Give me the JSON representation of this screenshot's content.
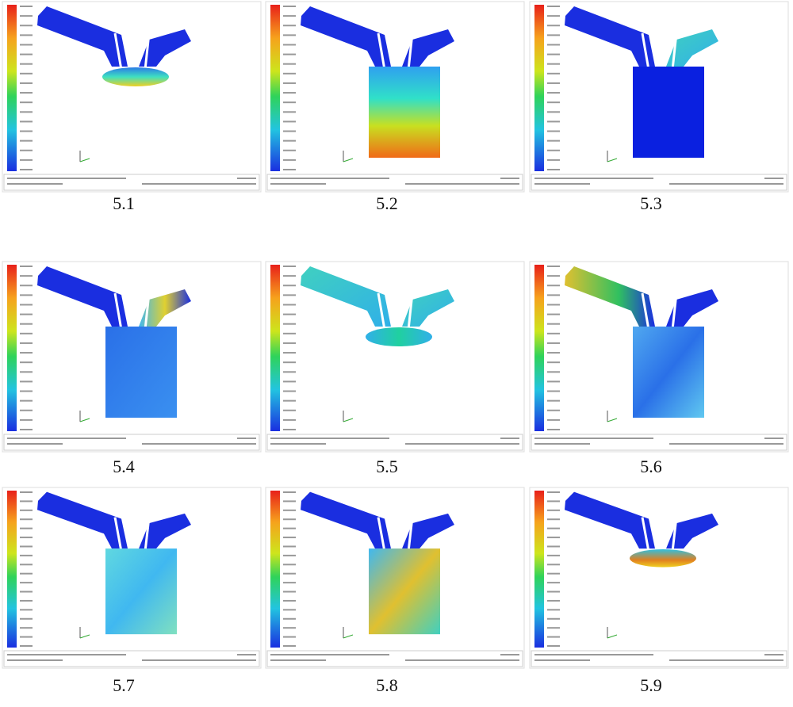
{
  "panels": [
    {
      "caption": "5.1"
    },
    {
      "caption": "5.2"
    },
    {
      "caption": "5.3"
    },
    {
      "caption": "5.4"
    },
    {
      "caption": "5.5"
    },
    {
      "caption": "5.6"
    },
    {
      "caption": "5.7"
    },
    {
      "caption": "5.8"
    },
    {
      "caption": "5.9"
    }
  ]
}
